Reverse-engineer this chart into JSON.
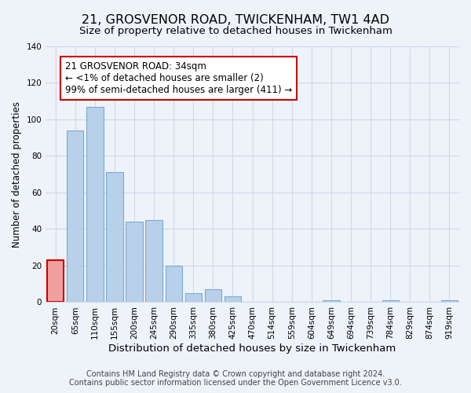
{
  "title": "21, GROSVENOR ROAD, TWICKENHAM, TW1 4AD",
  "subtitle": "Size of property relative to detached houses in Twickenham",
  "xlabel": "Distribution of detached houses by size in Twickenham",
  "ylabel": "Number of detached properties",
  "footer_line1": "Contains HM Land Registry data © Crown copyright and database right 2024.",
  "footer_line2": "Contains public sector information licensed under the Open Government Licence v3.0.",
  "bar_labels": [
    "20sqm",
    "65sqm",
    "110sqm",
    "155sqm",
    "200sqm",
    "245sqm",
    "290sqm",
    "335sqm",
    "380sqm",
    "425sqm",
    "470sqm",
    "514sqm",
    "559sqm",
    "604sqm",
    "649sqm",
    "694sqm",
    "739sqm",
    "784sqm",
    "829sqm",
    "874sqm",
    "919sqm"
  ],
  "bar_values": [
    23,
    94,
    107,
    71,
    44,
    45,
    20,
    5,
    7,
    3,
    0,
    0,
    0,
    0,
    1,
    0,
    0,
    1,
    0,
    0,
    1
  ],
  "highlight_bar_index": 0,
  "bar_color": "#b8d0ea",
  "bar_edge_color": "#7aaad0",
  "highlight_bar_color": "#f0a0a0",
  "highlight_bar_edge_color": "#cc0000",
  "background_color": "#eef2f9",
  "grid_color": "#d0d8e8",
  "annotation_text": "21 GROSVENOR ROAD: 34sqm\n← <1% of detached houses are smaller (2)\n99% of semi-detached houses are larger (411) →",
  "annotation_box_color": "#ffffff",
  "annotation_box_edge_color": "#cc0000",
  "ylim": [
    0,
    140
  ],
  "yticks": [
    0,
    20,
    40,
    60,
    80,
    100,
    120,
    140
  ],
  "title_fontsize": 11.5,
  "subtitle_fontsize": 9.5,
  "xlabel_fontsize": 9.5,
  "ylabel_fontsize": 8.5,
  "tick_fontsize": 7.5,
  "footer_fontsize": 7,
  "annotation_fontsize": 8.5
}
